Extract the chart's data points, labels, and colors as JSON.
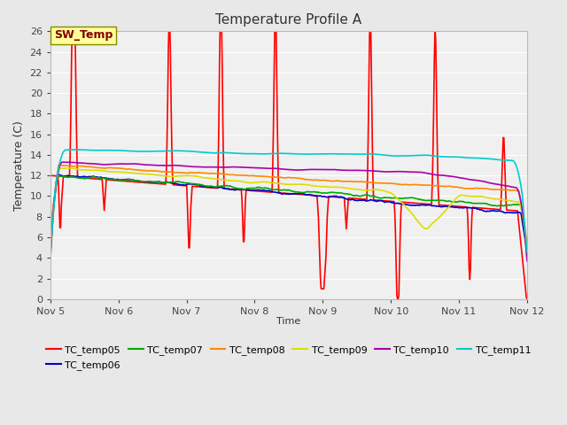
{
  "title": "Temperature Profile A",
  "xlabel": "Time",
  "ylabel": "Temperature (C)",
  "ylim": [
    0,
    26
  ],
  "yticks": [
    0,
    2,
    4,
    6,
    8,
    10,
    12,
    14,
    16,
    18,
    20,
    22,
    24,
    26
  ],
  "bg_color": "#e8e8e8",
  "plot_bg_color": "#f0f0f0",
  "sw_temp_label": "SW_Temp",
  "sw_temp_box_color": "#ffff99",
  "sw_temp_text_color": "#800000",
  "legend_entries": [
    "TC_temp05",
    "TC_temp06",
    "TC_temp07",
    "TC_temp08",
    "TC_temp09",
    "TC_temp10",
    "TC_temp11"
  ],
  "line_colors": {
    "TC_temp05": "#ff0000",
    "TC_temp06": "#0000cc",
    "TC_temp07": "#00aa00",
    "TC_temp08": "#ff8800",
    "TC_temp09": "#dddd00",
    "TC_temp10": "#aa00aa",
    "TC_temp11": "#00cccc"
  },
  "x_start": 5.0,
  "x_end": 12.0,
  "xtick_positions": [
    5,
    6,
    7,
    8,
    9,
    10,
    11,
    12
  ],
  "xtick_labels": [
    "Nov 5",
    "Nov 6",
    "Nov 7",
    "Nov 8",
    "Nov 9",
    "Nov 10",
    "Nov 11",
    "Nov 12"
  ]
}
